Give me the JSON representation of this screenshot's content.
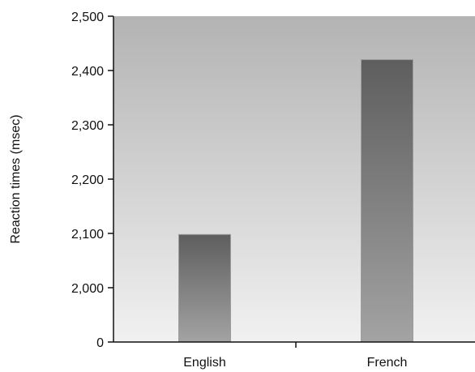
{
  "chart_data": {
    "type": "bar",
    "title": "",
    "xlabel": "",
    "ylabel": "Reaction times (msec)",
    "categories": [
      "English",
      "French"
    ],
    "values": [
      2098,
      2420
    ],
    "yticks": [
      0,
      2000,
      2100,
      2200,
      2300,
      2400,
      2500
    ],
    "ytick_labels": [
      "0",
      "2,000",
      "2,100",
      "2,200",
      "2,300",
      "2,400",
      "2,500"
    ],
    "ylim": [
      0,
      2500
    ],
    "axis_break": true,
    "grid": false,
    "legend": "none"
  },
  "colors": {
    "plot_bg_top": "#b3b3b3",
    "plot_bg_bottom": "#f1f1f1",
    "bar_top": "#5e5e5e",
    "bar_bottom": "#a3a3a3",
    "axis": "#111111"
  }
}
